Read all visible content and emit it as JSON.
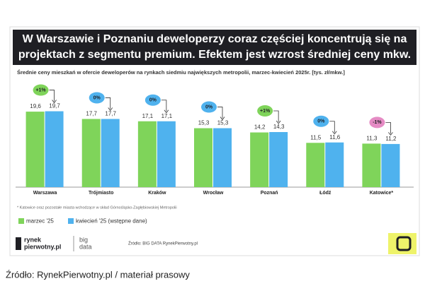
{
  "chart_data": {
    "type": "bar",
    "title_lines": [
      "W Warszawie i Poznaniu deweloperzy coraz częściej koncentrują się na",
      "projektach z segmentu premium. Efektem jest wzrost średniej ceny mkw."
    ],
    "subtitle": "Średnie ceny mieszkań w ofercie deweloperów na rynkach siedmiu największych metropolii, marzec-kwiecień 2025r. [tys. zł/mkw.]",
    "categories": [
      "Warszawa",
      "Trójmiasto",
      "Kraków",
      "Wrocław",
      "Poznań",
      "Łódź",
      "Katowice*"
    ],
    "series": [
      {
        "name": "marzec '25",
        "color": "#7fd45a",
        "values": [
          19.6,
          17.7,
          17.1,
          15.3,
          14.2,
          11.5,
          11.3
        ],
        "value_labels": [
          "19,6",
          "17,7",
          "17,1",
          "15,3",
          "14,2",
          "11,5",
          "11,3"
        ]
      },
      {
        "name": "kwiecień '25 (wstępne dane)",
        "color": "#4fb2ee",
        "values": [
          19.7,
          17.7,
          17.1,
          15.3,
          14.3,
          11.6,
          11.2
        ],
        "value_labels": [
          "19,7",
          "17,7",
          "17,1",
          "15,3",
          "14,3",
          "11,6",
          "11,2"
        ]
      }
    ],
    "changes": [
      "+1%",
      "0%",
      "0%",
      "0%",
      "+1%",
      "0%",
      "-1%"
    ],
    "change_colors": [
      "#7fd45a",
      "#4fb2ee",
      "#4fb2ee",
      "#4fb2ee",
      "#7fd45a",
      "#4fb2ee",
      "#e58bc4"
    ],
    "ylim": [
      0,
      22
    ],
    "footnote": "* Katowice oraz pozostałe miasta wchodzące w skład Górnośląsko-Zagłębiowskiej Metropolii",
    "footer_source": "Źródło: BIG DATA RynekPierwotny.pl",
    "logo_main": [
      "rynek",
      "pierwotny.pl"
    ],
    "logo_secondary": [
      "big",
      "data"
    ],
    "caption": "Źródło: RynekPierwotny.pl / materiał prasowy"
  }
}
